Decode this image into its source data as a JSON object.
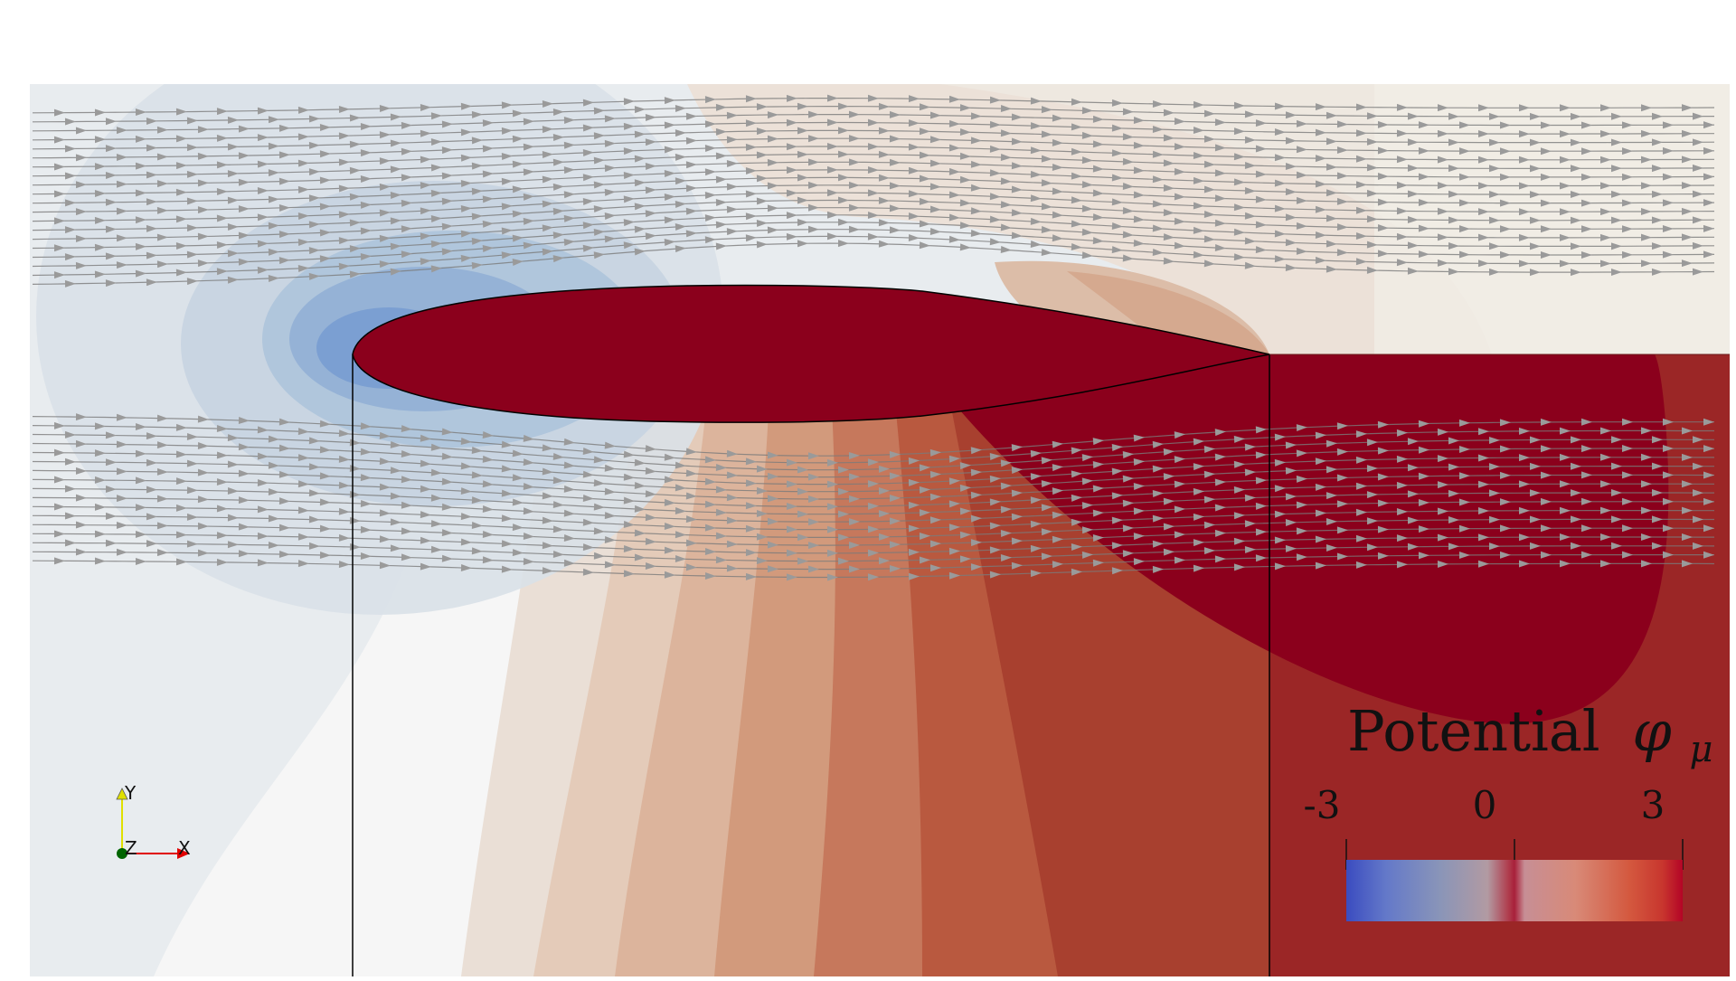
{
  "colorbar": {
    "title": "Potential",
    "symbol": "φ",
    "subscript": "μ",
    "tick_labels": [
      "-3",
      "0",
      "3"
    ],
    "range": [
      -3,
      3
    ],
    "colors": {
      "low": "#3b4cc0",
      "mid": "#dddcdc",
      "high": "#b40426",
      "max": "#8b001c"
    }
  },
  "axes": {
    "y_label": "Y",
    "z_label": "Z",
    "x_label": "X",
    "y_color": "#e0e000",
    "x_color": "#e00000",
    "origin_color": "#006400"
  },
  "airfoil": {
    "fill": "#8b001c"
  }
}
